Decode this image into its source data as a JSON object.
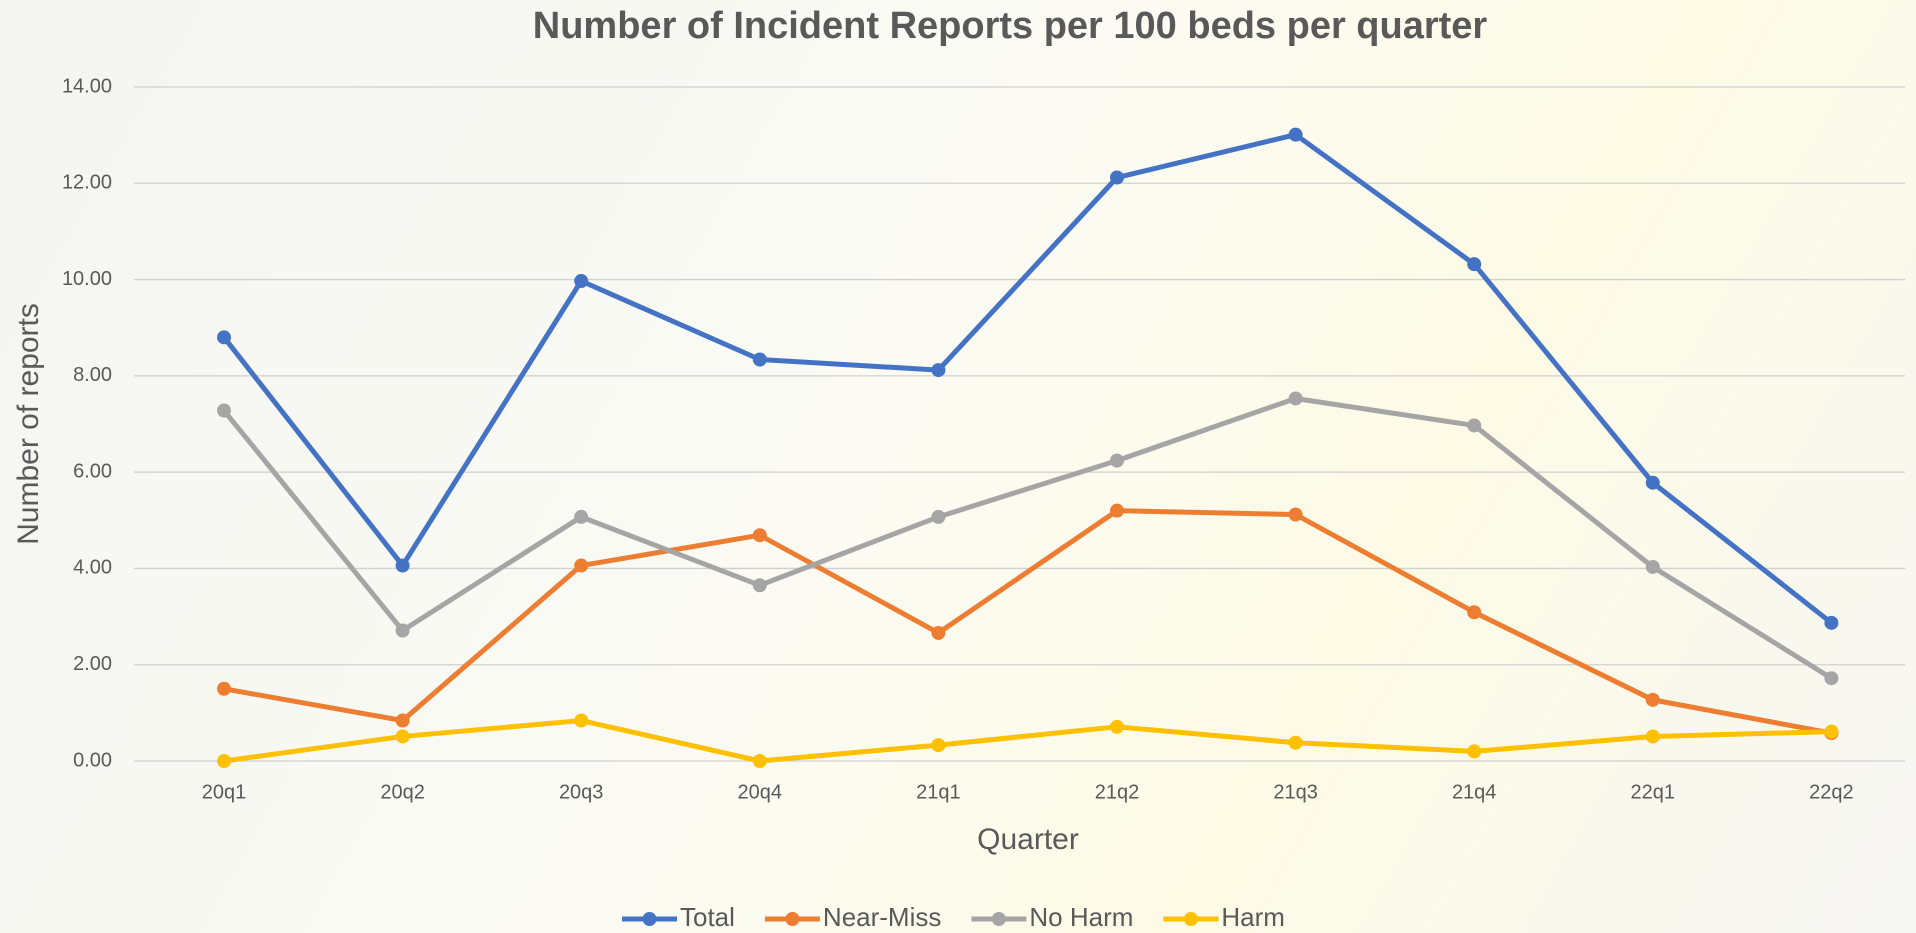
{
  "chart_data": {
    "type": "line",
    "title": "Number of Incident Reports per 100 beds per quarter",
    "x_label": "Quarter",
    "y_label": "Number of reports",
    "categories": [
      "20q1",
      "20q2",
      "20q3",
      "20q4",
      "21q1",
      "21q2",
      "21q3",
      "21q4",
      "22q1",
      "22q2"
    ],
    "series": [
      {
        "name": "Total",
        "color": "#4472c4",
        "values": [
          8.8,
          4.06,
          9.97,
          8.34,
          8.12,
          12.12,
          13.01,
          10.32,
          5.78,
          2.87
        ]
      },
      {
        "name": "Near-Miss",
        "color": "#ed7d31",
        "values": [
          1.5,
          0.84,
          4.06,
          4.69,
          2.66,
          5.2,
          5.12,
          3.09,
          1.27,
          0.58
        ]
      },
      {
        "name": "No Harm",
        "color": "#a5a5a5",
        "values": [
          7.28,
          2.71,
          5.07,
          3.65,
          5.07,
          6.24,
          7.53,
          6.97,
          4.03,
          1.72
        ]
      },
      {
        "name": "Harm",
        "color": "#ffc000",
        "values": [
          0,
          0.51,
          0.84,
          0,
          0.33,
          0.71,
          0.38,
          0.2,
          0.51,
          0.61
        ]
      }
    ],
    "ylim": [
      0,
      14
    ],
    "yticks": [
      {
        "value": 0,
        "label": "0.00"
      },
      {
        "value": 2,
        "label": "2.00"
      },
      {
        "value": 4,
        "label": "4.00"
      },
      {
        "value": 6,
        "label": "6.00"
      },
      {
        "value": 8,
        "label": "8.00"
      },
      {
        "value": 10,
        "label": "10.00"
      },
      {
        "value": 12,
        "label": "12.00"
      },
      {
        "value": 14,
        "label": "14.00"
      }
    ],
    "grid": true,
    "legend": "bottom"
  }
}
